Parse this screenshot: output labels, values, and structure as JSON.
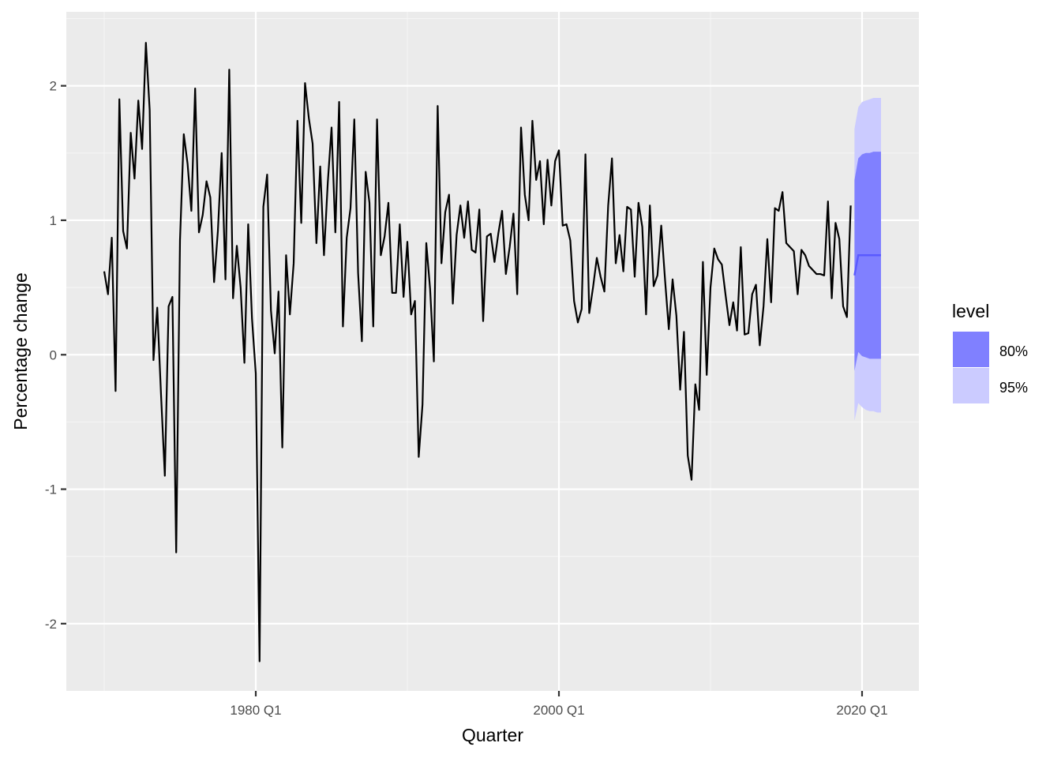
{
  "chart_data": {
    "type": "line",
    "xlabel": "Quarter",
    "ylabel": "Percentage change",
    "xlim": [
      1967.5,
      2023.75
    ],
    "ylim": [
      -2.5,
      2.55
    ],
    "grid": true,
    "x_ticks": [
      {
        "value": 1980.0,
        "label": "1980 Q1"
      },
      {
        "value": 2000.0,
        "label": "2000 Q1"
      },
      {
        "value": 2020.0,
        "label": "2020 Q1"
      }
    ],
    "y_ticks": [
      {
        "value": -2,
        "label": "-2"
      },
      {
        "value": -1,
        "label": "-1"
      },
      {
        "value": 0,
        "label": "0"
      },
      {
        "value": 1,
        "label": "1"
      },
      {
        "value": 2,
        "label": "2"
      }
    ],
    "history_start": 1970.0,
    "history_step": 0.25,
    "history_values": [
      0.62,
      0.45,
      0.87,
      -0.27,
      1.9,
      0.92,
      0.79,
      1.65,
      1.31,
      1.89,
      1.53,
      2.32,
      1.82,
      -0.04,
      0.35,
      -0.3,
      -0.9,
      0.36,
      0.43,
      -1.47,
      0.85,
      1.64,
      1.42,
      1.07,
      1.98,
      0.91,
      1.04,
      1.29,
      1.17,
      0.54,
      0.92,
      1.5,
      0.56,
      2.12,
      0.42,
      0.81,
      0.5,
      -0.06,
      0.97,
      0.27,
      -0.14,
      -2.28,
      1.1,
      1.34,
      0.33,
      0.01,
      0.47,
      -0.69,
      0.74,
      0.3,
      0.68,
      1.74,
      0.98,
      2.02,
      1.76,
      1.57,
      0.83,
      1.4,
      0.74,
      1.28,
      1.69,
      0.91,
      1.88,
      0.21,
      0.87,
      1.09,
      1.75,
      0.61,
      0.1,
      1.36,
      1.13,
      0.21,
      1.75,
      0.74,
      0.88,
      1.13,
      0.46,
      0.46,
      0.97,
      0.43,
      0.84,
      0.3,
      0.4,
      -0.76,
      -0.37,
      0.83,
      0.49,
      -0.05,
      1.85,
      0.68,
      1.06,
      1.19,
      0.38,
      0.89,
      1.11,
      0.87,
      1.14,
      0.78,
      0.76,
      1.08,
      0.25,
      0.88,
      0.9,
      0.69,
      0.9,
      1.07,
      0.6,
      0.8,
      1.05,
      0.45,
      1.69,
      1.19,
      1.0,
      1.74,
      1.3,
      1.44,
      0.97,
      1.45,
      1.11,
      1.44,
      1.52,
      0.96,
      0.97,
      0.85,
      0.4,
      0.24,
      0.34,
      1.49,
      0.31,
      0.5,
      0.72,
      0.58,
      0.47,
      1.11,
      1.46,
      0.68,
      0.89,
      0.62,
      1.1,
      1.08,
      0.58,
      1.13,
      0.95,
      0.3,
      1.11,
      0.51,
      0.59,
      0.96,
      0.56,
      0.19,
      0.56,
      0.29,
      -0.26,
      0.17,
      -0.75,
      -0.93,
      -0.22,
      -0.41,
      0.69,
      -0.15,
      0.5,
      0.79,
      0.71,
      0.67,
      0.44,
      0.22,
      0.39,
      0.18,
      0.8,
      0.15,
      0.16,
      0.45,
      0.52,
      0.07,
      0.36,
      0.86,
      0.39,
      1.09,
      1.07,
      1.21,
      0.83,
      0.8,
      0.77,
      0.45,
      0.78,
      0.74,
      0.66,
      0.63,
      0.6,
      0.6,
      0.59,
      1.14,
      0.42,
      0.98,
      0.86,
      0.36,
      0.28,
      1.11
    ],
    "forecast": {
      "x": [
        2019.5,
        2019.75,
        2020.0,
        2020.25,
        2020.5,
        2020.75,
        2021.0,
        2021.25
      ],
      "mean": [
        0.59,
        0.74,
        0.74,
        0.74,
        0.74,
        0.74,
        0.74,
        0.74
      ],
      "lower_80": [
        -0.12,
        0.02,
        -0.01,
        -0.02,
        -0.03,
        -0.03,
        -0.03,
        -0.03
      ],
      "upper_80": [
        1.3,
        1.46,
        1.49,
        1.5,
        1.5,
        1.51,
        1.51,
        1.51
      ],
      "lower_95": [
        -0.49,
        -0.36,
        -0.39,
        -0.41,
        -0.42,
        -0.42,
        -0.43,
        -0.43
      ],
      "upper_95": [
        1.68,
        1.84,
        1.88,
        1.89,
        1.9,
        1.91,
        1.91,
        1.91
      ]
    },
    "legend": {
      "title": "level",
      "position": "right",
      "entries": [
        {
          "label": "80%",
          "color": "#8080ff"
        },
        {
          "label": "95%",
          "color": "#cbcbff"
        }
      ]
    },
    "colors": {
      "panel": "#ebebeb",
      "grid_major": "#ffffff",
      "grid_minor": "#f5f5f5",
      "line": "#000000",
      "forecast_line": "#5a5aff",
      "band_80": "#8080ff",
      "band_95": "#cbcbff",
      "tick": "#333333"
    }
  }
}
